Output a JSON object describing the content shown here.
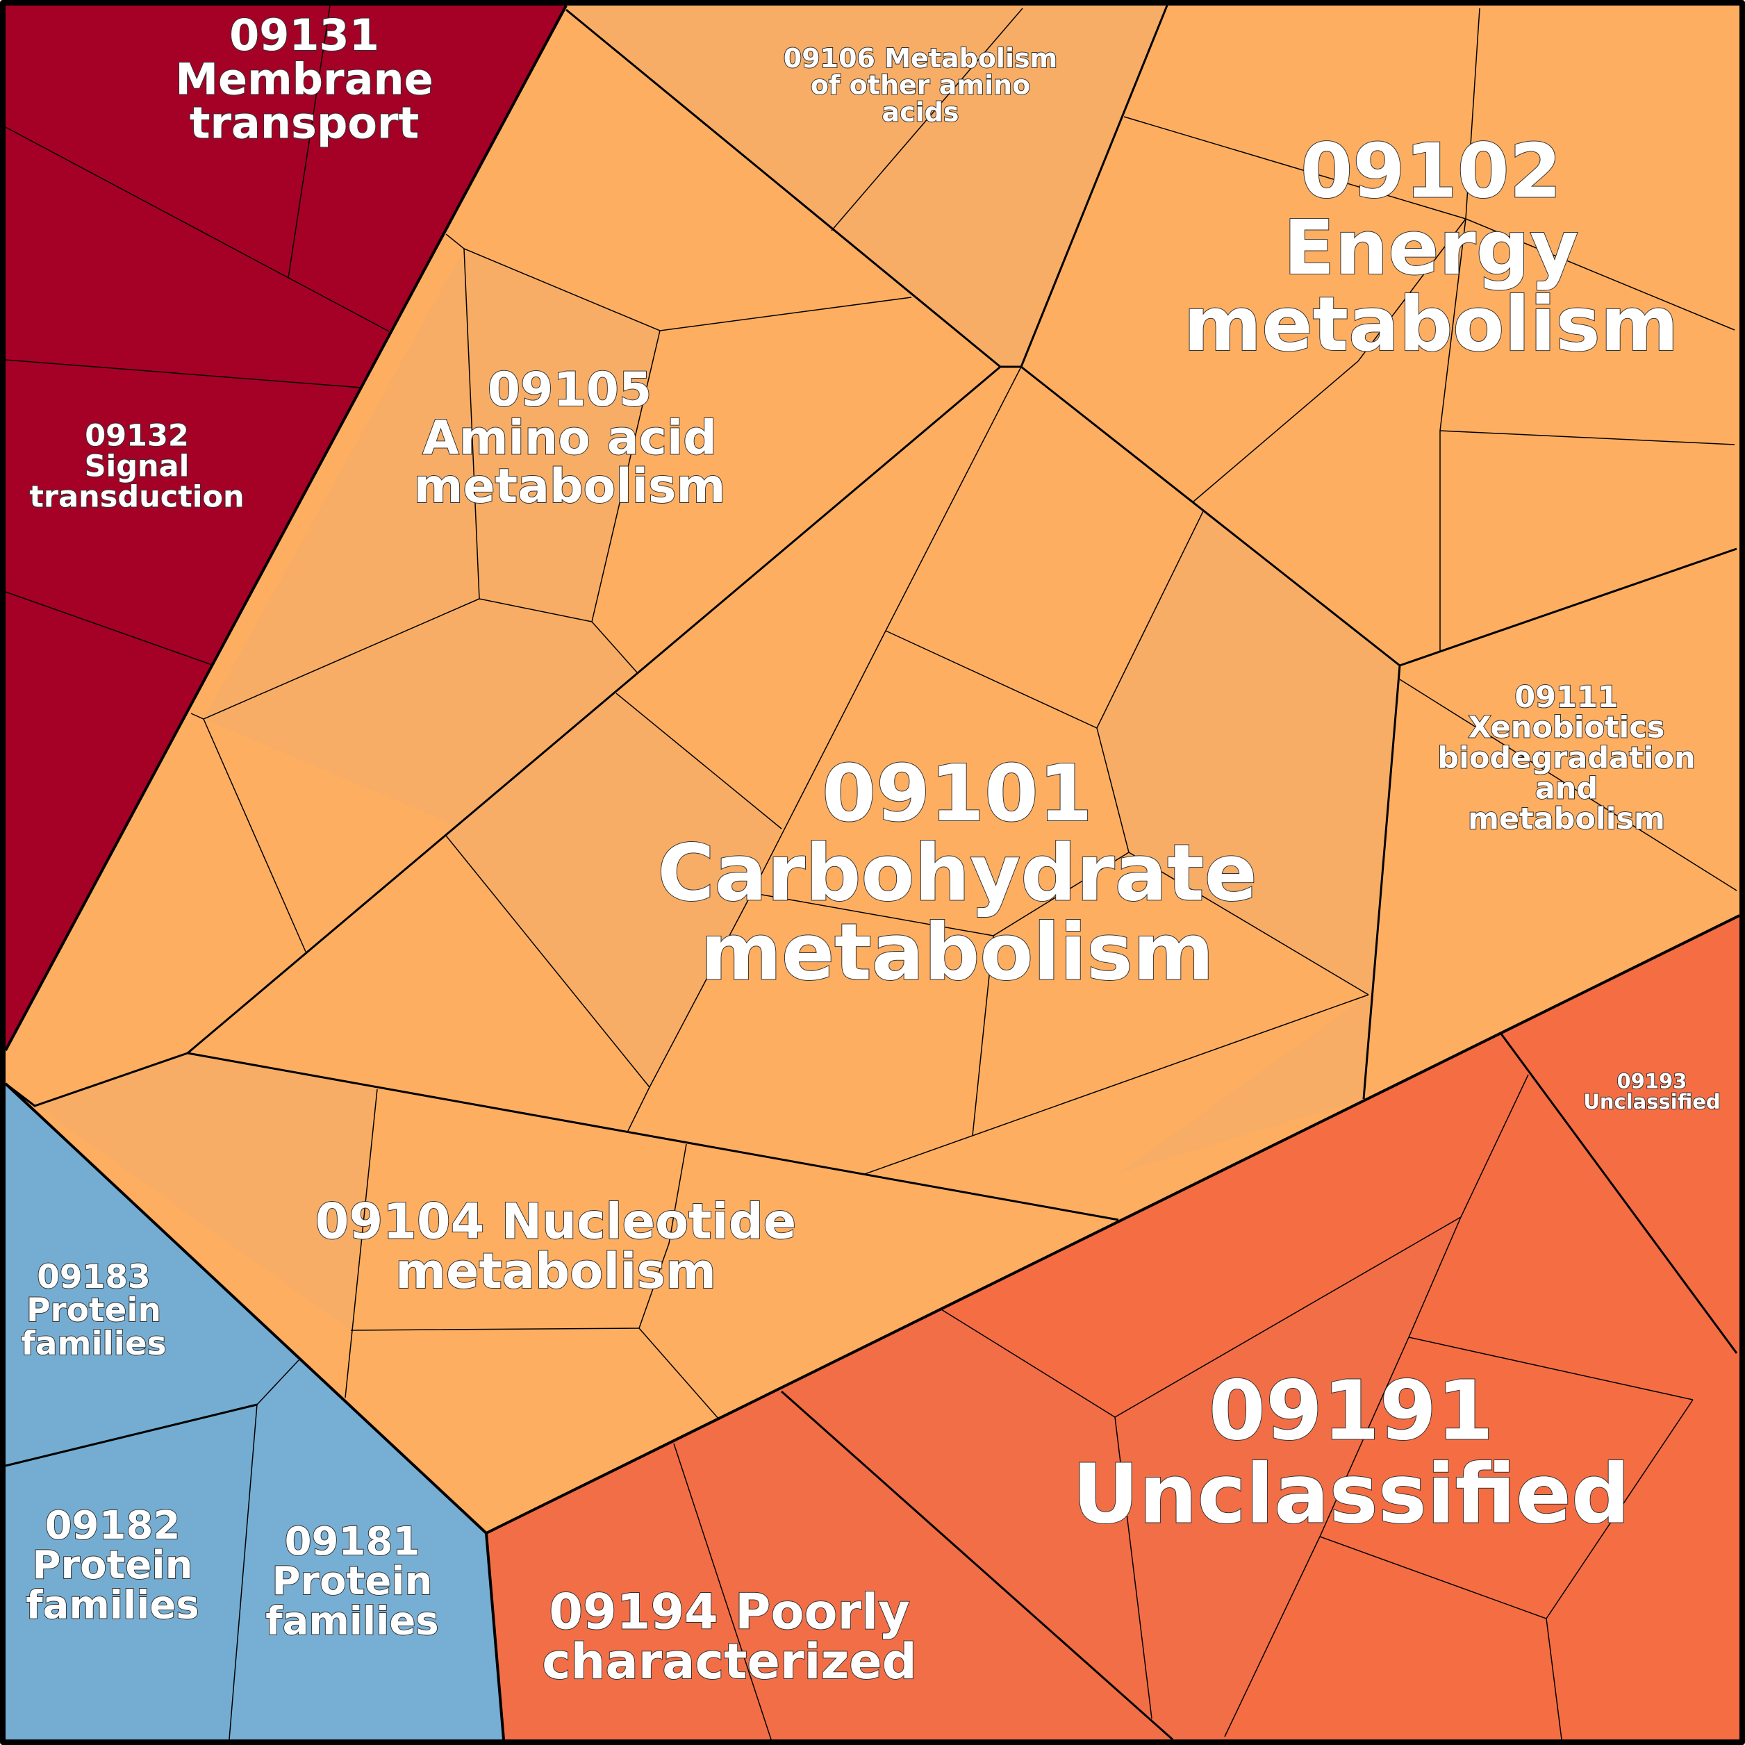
{
  "colors": {
    "membrane_signal": "#a50026",
    "metabolism": "#fdae61",
    "metabolism_alt": "#f7ad65",
    "unclassified": "#f46d43",
    "unclassified_alt": "#f26e46",
    "protein_families": "#74add1",
    "border": "#000000",
    "label_fill": "#ffffff",
    "label_stroke": "#333333"
  },
  "regions": [
    {
      "id": "09131",
      "lines": [
        "09131",
        "Membrane",
        "transport"
      ],
      "group": "membrane_signal"
    },
    {
      "id": "09132",
      "lines": [
        "09132",
        "Signal",
        "transduction"
      ],
      "group": "membrane_signal"
    },
    {
      "id": "09106",
      "lines": [
        "09106 Metabolism",
        "of other amino",
        "acids"
      ],
      "group": "metabolism"
    },
    {
      "id": "09105",
      "lines": [
        "09105",
        "Amino acid",
        "metabolism"
      ],
      "group": "metabolism"
    },
    {
      "id": "09102",
      "lines": [
        "09102",
        "Energy",
        "metabolism"
      ],
      "group": "metabolism"
    },
    {
      "id": "09101",
      "lines": [
        "09101",
        "Carbohydrate",
        "metabolism"
      ],
      "group": "metabolism"
    },
    {
      "id": "09111",
      "lines": [
        "09111",
        "Xenobiotics",
        "biodegradation",
        "and",
        "metabolism"
      ],
      "group": "metabolism"
    },
    {
      "id": "09104",
      "lines": [
        "09104 Nucleotide",
        "metabolism"
      ],
      "group": "metabolism"
    },
    {
      "id": "09193",
      "lines": [
        "09193",
        "Unclassified"
      ],
      "group": "unclassified"
    },
    {
      "id": "09191",
      "lines": [
        "09191",
        "Unclassified"
      ],
      "group": "unclassified"
    },
    {
      "id": "09194",
      "lines": [
        "09194 Poorly",
        "characterized"
      ],
      "group": "unclassified"
    },
    {
      "id": "09183",
      "lines": [
        "09183",
        "Protein",
        "families"
      ],
      "group": "protein_families"
    },
    {
      "id": "09182",
      "lines": [
        "09182",
        "Protein",
        "families"
      ],
      "group": "protein_families"
    },
    {
      "id": "09181",
      "lines": [
        "09181",
        "Protein",
        "families"
      ],
      "group": "protein_families"
    }
  ]
}
